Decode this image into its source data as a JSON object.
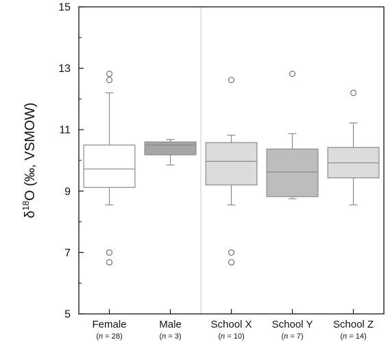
{
  "chart_data": {
    "type": "box",
    "ylabel": {
      "delta": "δ",
      "superscript": "18",
      "rest": "O (‰, VSMOW)"
    },
    "ylim": [
      5,
      15
    ],
    "yticks": [
      5,
      7,
      9,
      11,
      13,
      15
    ],
    "grid": false,
    "legend": "none",
    "separator_after_category": 2,
    "categories": [
      {
        "label": "Female",
        "n_text": "(n = 28)",
        "n_prefix": "(",
        "n_italic": "n",
        "n_suffix": " = 28)",
        "fill": "#ffffff",
        "q1": 9.12,
        "median": 9.72,
        "q3": 10.5,
        "whisker_low": 8.55,
        "whisker_high": 12.2,
        "outliers": [
          12.82,
          12.62,
          7.0,
          6.68
        ]
      },
      {
        "label": "Male",
        "n_text": "(n = 3)",
        "n_prefix": "(",
        "n_italic": "n",
        "n_suffix": " = 3)",
        "fill": "#a6a6a6",
        "q1": 10.18,
        "median": 10.5,
        "q3": 10.6,
        "whisker_low": 9.85,
        "whisker_high": 10.68,
        "outliers": []
      },
      {
        "label": "School X",
        "n_text": "(n = 10)",
        "n_prefix": "(",
        "n_italic": "n",
        "n_suffix": " = 10)",
        "fill": "#dcdcdc",
        "q1": 9.2,
        "median": 9.97,
        "q3": 10.58,
        "whisker_low": 8.55,
        "whisker_high": 10.82,
        "outliers": [
          12.62,
          7.0,
          6.68
        ]
      },
      {
        "label": "School Y",
        "n_text": "(n = 7)",
        "n_prefix": "(",
        "n_italic": "n",
        "n_suffix": " = 7)",
        "fill": "#bdbdbd",
        "q1": 8.82,
        "median": 9.62,
        "q3": 10.37,
        "whisker_low": 8.75,
        "whisker_high": 10.87,
        "outliers": [
          12.82
        ]
      },
      {
        "label": "School Z",
        "n_text": "(n = 14)",
        "n_prefix": "(",
        "n_italic": "n",
        "n_suffix": " = 14)",
        "fill": "#dcdcdc",
        "q1": 9.43,
        "median": 9.92,
        "q3": 10.42,
        "whisker_low": 8.55,
        "whisker_high": 11.22,
        "outliers": [
          12.2
        ]
      }
    ],
    "colors": {
      "axis": "#111111",
      "box_stroke": "#8a8a8a",
      "outlier_stroke": "#666666",
      "separator": "#c8c8c8"
    }
  }
}
